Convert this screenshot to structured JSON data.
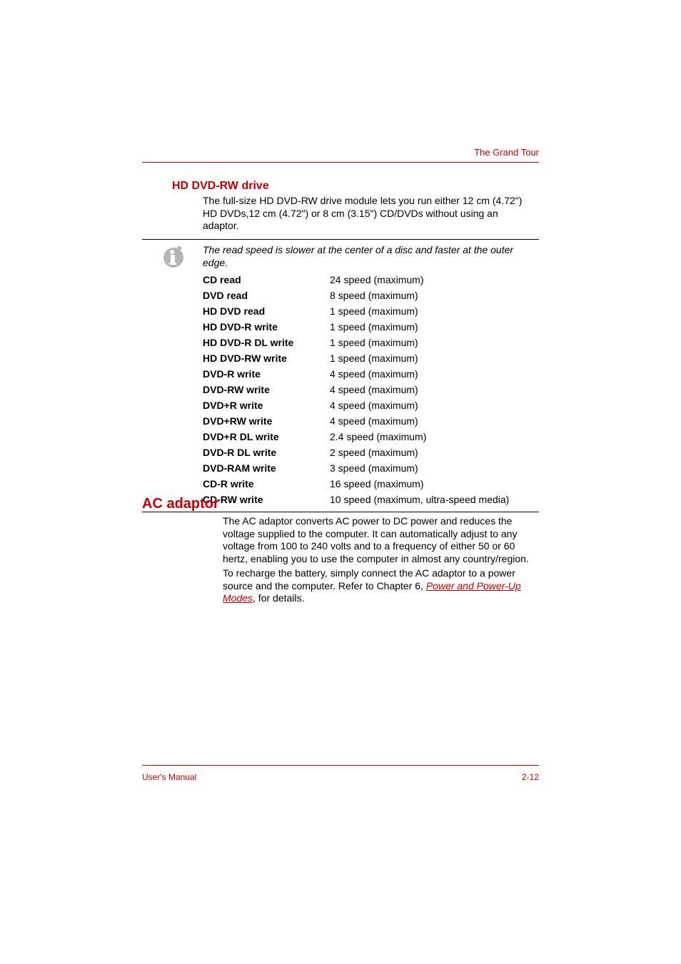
{
  "header": {
    "section_label": "The Grand Tour"
  },
  "colors": {
    "accent": "#c00000",
    "text": "#000000",
    "bg": "#ffffff",
    "icon_fill": "#b6b6b6"
  },
  "typography": {
    "body_fontsize": 14,
    "h3_fontsize": 16,
    "h2_fontsize": 20,
    "footer_fontsize": 12,
    "header_fontsize": 13,
    "font_family": "Arial"
  },
  "hd_section": {
    "title": "HD DVD-RW drive",
    "intro": "The full-size HD DVD-RW drive module lets you run either 12 cm (4.72\") HD DVDs,12 cm (4.72\") or 8 cm (3.15\") CD/DVDs without using an adaptor.",
    "note": "The read speed is slower at the center of a disc and faster at the outer edge.",
    "specs": [
      {
        "label": "CD read",
        "value": "24 speed (maximum)"
      },
      {
        "label": "DVD read",
        "value": "8 speed (maximum)"
      },
      {
        "label": "HD DVD read",
        "value": "1 speed (maximum)"
      },
      {
        "label": "HD DVD-R write",
        "value": "1 speed (maximum)"
      },
      {
        "label": "HD DVD-R DL write",
        "value": "1 speed (maximum)"
      },
      {
        "label": "HD DVD-RW write",
        "value": "1 speed (maximum)"
      },
      {
        "label": "DVD-R write",
        "value": "4 speed (maximum)"
      },
      {
        "label": "DVD-RW write",
        "value": "4 speed (maximum)"
      },
      {
        "label": "DVD+R write",
        "value": "4 speed (maximum)"
      },
      {
        "label": "DVD+RW write",
        "value": "4 speed (maximum)"
      },
      {
        "label": "DVD+R DL write",
        "value": "2.4 speed (maximum)"
      },
      {
        "label": "DVD-R DL write",
        "value": "2 speed (maximum)"
      },
      {
        "label": "DVD-RAM write",
        "value": "3 speed (maximum)"
      },
      {
        "label": "CD-R write",
        "value": "16 speed (maximum)"
      },
      {
        "label": "CD-RW write",
        "value": "10 speed (maximum, ultra-speed media)"
      }
    ]
  },
  "ac_section": {
    "title": "AC adaptor",
    "p1": "The AC adaptor converts AC power to DC power and reduces the voltage supplied to the computer. It can automatically adjust to any voltage from 100 to 240 volts and to a frequency of either 50 or 60 hertz, enabling you to use the computer in almost any country/region.",
    "p2_pre": "To recharge the battery, simply connect the AC adaptor to a power source and the computer. Refer to Chapter 6, ",
    "p2_link": "Power and Power-Up Modes",
    "p2_post": ", for details."
  },
  "footer": {
    "left": "User's Manual",
    "right": "2-12"
  }
}
